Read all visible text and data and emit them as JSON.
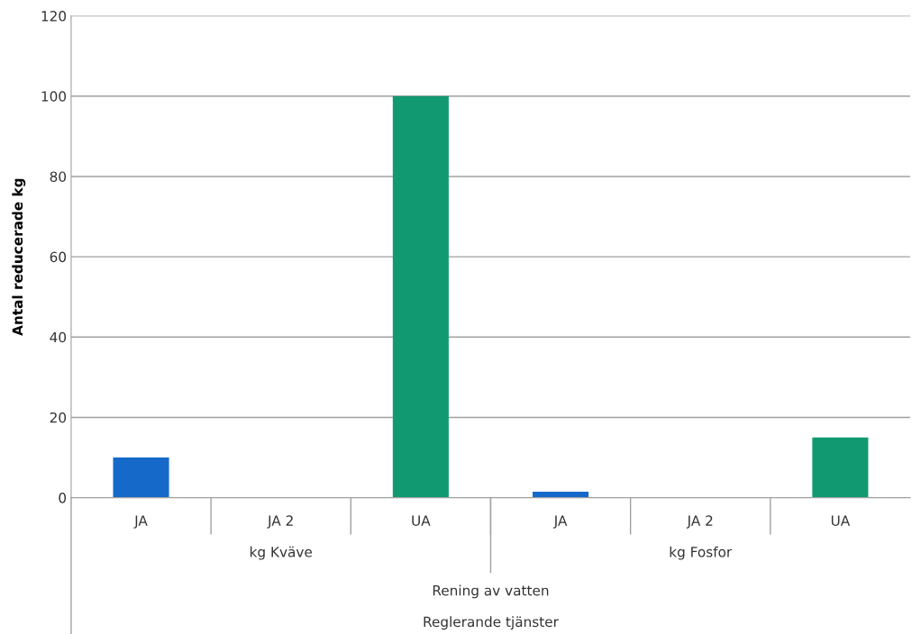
{
  "chart_data": {
    "type": "bar",
    "ylabel": "Antal reducerade kg",
    "categories": [
      "JA",
      "JA 2",
      "UA",
      "JA",
      "JA 2",
      "UA"
    ],
    "values": [
      10,
      null,
      100,
      1.5,
      null,
      15
    ],
    "colors": [
      "#1569c8",
      "#1569c8",
      "#119a72",
      "#1569c8",
      "#1569c8",
      "#119a72"
    ],
    "ylim": [
      0,
      120
    ],
    "yticks": [
      0,
      20,
      40,
      60,
      80,
      100,
      120
    ],
    "grid": "y",
    "annotations": [
      "kg Kväve",
      "kg Fosfor",
      "Rening av vatten",
      "Reglerande tjänster"
    ]
  }
}
